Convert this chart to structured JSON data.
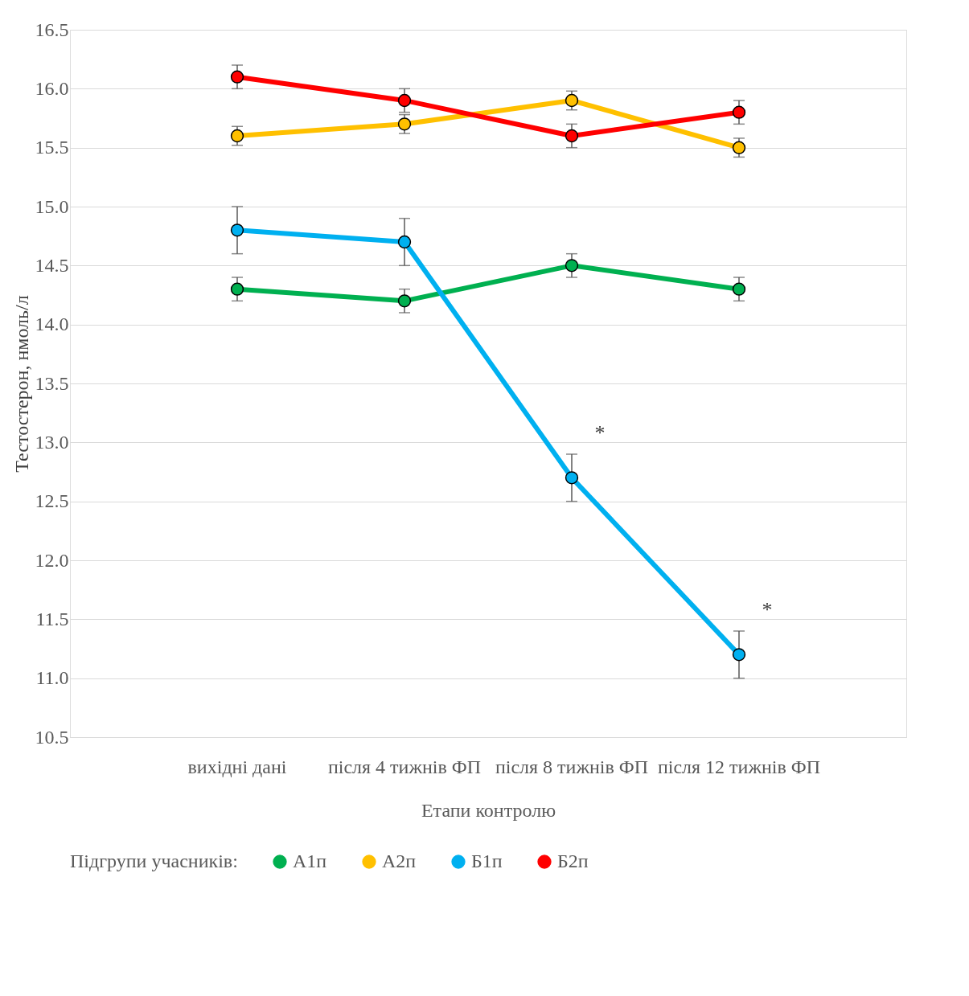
{
  "chart_data": {
    "type": "line",
    "xlabel": "Етапи контролю",
    "ylabel": "Тестостерон, нмоль/л",
    "legend_title": "Підгрупи учасників:",
    "categories": [
      "вихідні дані",
      "після 4 тижнів ФП",
      "після 8 тижнів ФП",
      "після 12 тижнів ФП"
    ],
    "series": [
      {
        "name": "А1п",
        "color": "#00b050",
        "values": [
          14.3,
          14.2,
          14.5,
          14.3
        ],
        "errors": [
          0.1,
          0.1,
          0.1,
          0.1
        ]
      },
      {
        "name": "А2п",
        "color": "#ffc000",
        "values": [
          15.6,
          15.7,
          15.9,
          15.5
        ],
        "errors": [
          0.08,
          0.08,
          0.08,
          0.08
        ]
      },
      {
        "name": "Б1п",
        "color": "#00b0f0",
        "values": [
          14.8,
          14.7,
          12.7,
          11.2
        ],
        "errors": [
          0.2,
          0.2,
          0.2,
          0.2
        ]
      },
      {
        "name": "Б2п",
        "color": "#ff0000",
        "values": [
          16.1,
          15.9,
          15.6,
          15.8
        ],
        "errors": [
          0.1,
          0.1,
          0.1,
          0.1
        ]
      }
    ],
    "annotations": [
      {
        "text": "*",
        "x": "після 8 тижнів ФП",
        "y": 12.7
      },
      {
        "text": "*",
        "x": "після 12 тижнів ФП",
        "y": 11.2
      }
    ],
    "ylim": [
      10.5,
      16.5
    ],
    "yticks": [
      {
        "value": 10.5,
        "label": "10.5"
      },
      {
        "value": 11,
        "label": "11.0"
      },
      {
        "value": 11.5,
        "label": "11.5"
      },
      {
        "value": 12,
        "label": "12.0"
      },
      {
        "value": 12.5,
        "label": "12.5"
      },
      {
        "value": 13,
        "label": "13.0"
      },
      {
        "value": 13.5,
        "label": "13.5"
      },
      {
        "value": 14,
        "label": "14.0"
      },
      {
        "value": 14.5,
        "label": "14.5"
      },
      {
        "value": 15,
        "label": "15.0"
      },
      {
        "value": 15.5,
        "label": "15.5"
      },
      {
        "value": 16,
        "label": "16.0"
      },
      {
        "value": 16.5,
        "label": "16.5"
      }
    ],
    "grid": "y",
    "legend": "bottom",
    "marker": "circle",
    "line_style": "solid"
  }
}
